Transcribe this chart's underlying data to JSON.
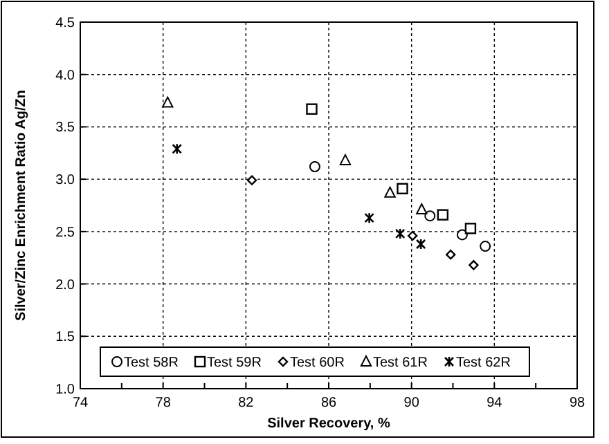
{
  "chart_data": {
    "type": "scatter",
    "xlabel": "Silver Recovery, %",
    "ylabel": "Silver/Zinc Enrichment Ratio Ag/Zn",
    "xlim": [
      74,
      98
    ],
    "xticks": [
      74,
      {
        "value": 76,
        "label": null
      },
      78,
      {
        "value": 80,
        "label": null
      },
      82,
      {
        "value": 84,
        "label": null
      },
      86,
      {
        "value": 88,
        "label": null
      },
      90,
      {
        "value": 92,
        "label": null
      },
      94,
      {
        "value": 96,
        "label": null
      },
      98
    ],
    "ylim": [
      1.0,
      4.5
    ],
    "yticks": [
      {
        "value": 1.0,
        "label": "1.0"
      },
      1.5,
      {
        "value": 2.0,
        "label": "2.0"
      },
      2.5,
      {
        "value": 3.0,
        "label": "3.0"
      },
      3.5,
      {
        "value": 4.0,
        "label": "4.0"
      },
      4.5
    ],
    "grid": true,
    "legend": "bottom",
    "series": [
      {
        "name": "Test 58R",
        "color": "#000000",
        "marker": "circle",
        "x": [
          85.33,
          90.89,
          92.45,
          93.56
        ],
        "values": [
          3.12,
          2.65,
          2.47,
          2.36
        ]
      },
      {
        "name": "Test 59R",
        "color": "#000000",
        "marker": "square",
        "x": [
          85.18,
          89.56,
          91.51,
          92.85
        ],
        "values": [
          3.67,
          2.91,
          2.66,
          2.53
        ]
      },
      {
        "name": "Test 60R",
        "color": "#000000",
        "marker": "diamond",
        "x": [
          82.29,
          90.05,
          91.89,
          93.0
        ],
        "values": [
          2.99,
          2.46,
          2.28,
          2.18
        ]
      },
      {
        "name": "Test 61R",
        "color": "#000000",
        "marker": "triangle",
        "x": [
          78.22,
          86.8,
          88.96,
          90.49
        ],
        "values": [
          3.73,
          3.18,
          2.87,
          2.71
        ]
      },
      {
        "name": "Test 62R",
        "color": "#000000",
        "marker": "cross",
        "x": [
          78.67,
          87.96,
          89.45,
          90.45
        ],
        "values": [
          3.29,
          2.63,
          2.48,
          2.38
        ]
      }
    ]
  }
}
